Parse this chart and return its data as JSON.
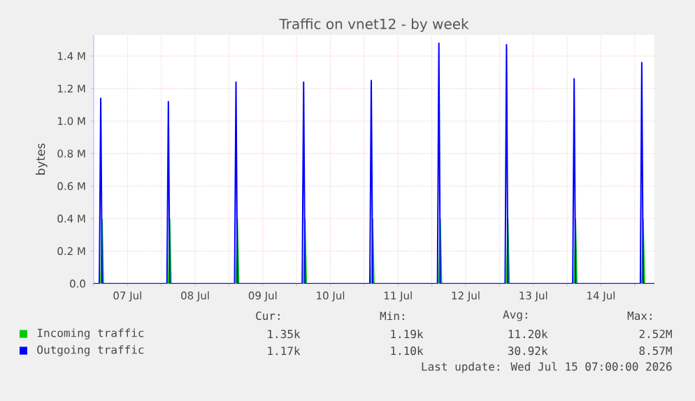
{
  "chart_data": {
    "type": "line",
    "title": "Traffic on vnet12 - by week",
    "ylabel": "bytes",
    "xlim": [
      "2026-07-07T00:00",
      "2026-07-15T07:00"
    ],
    "xticks": [
      {
        "value": "2026-07-07T00:00",
        "label": null
      },
      {
        "value": "2026-07-07T12:00",
        "label": "07 Jul"
      },
      {
        "value": "2026-07-08T00:00",
        "label": null
      },
      {
        "value": "2026-07-08T12:00",
        "label": "08 Jul"
      },
      {
        "value": "2026-07-09T00:00",
        "label": null
      },
      {
        "value": "2026-07-09T12:00",
        "label": "09 Jul"
      },
      {
        "value": "2026-07-10T00:00",
        "label": null
      },
      {
        "value": "2026-07-10T12:00",
        "label": "10 Jul"
      },
      {
        "value": "2026-07-11T00:00",
        "label": null
      },
      {
        "value": "2026-07-11T12:00",
        "label": "11 Jul"
      },
      {
        "value": "2026-07-12T00:00",
        "label": null
      },
      {
        "value": "2026-07-12T12:00",
        "label": "12 Jul"
      },
      {
        "value": "2026-07-13T00:00",
        "label": null
      },
      {
        "value": "2026-07-13T12:00",
        "label": "13 Jul"
      },
      {
        "value": "2026-07-14T00:00",
        "label": null
      },
      {
        "value": "2026-07-14T12:00",
        "label": "14 Jul"
      },
      {
        "value": "2026-07-15T00:00",
        "label": null
      }
    ],
    "ylim": [
      0,
      1530000
    ],
    "yticks": [
      {
        "value": 0,
        "label": "0.0"
      },
      {
        "value": 200000,
        "label": "0.2 M"
      },
      {
        "value": 400000,
        "label": "0.4 M"
      },
      {
        "value": 600000,
        "label": "0.6 M"
      },
      {
        "value": 800000,
        "label": "0.8 M"
      },
      {
        "value": 1000000,
        "label": "1.0 M"
      },
      {
        "value": 1200000,
        "label": "1.2 M"
      },
      {
        "value": 1400000,
        "label": "1.4 M"
      }
    ],
    "grid": true,
    "legend": "bottom left",
    "series": [
      {
        "name": "Incoming traffic",
        "type": "area",
        "color": "#00cc00",
        "x": [
          "2026-07-07T00:00",
          "2026-07-07T02:30",
          "2026-07-07T03:00",
          "2026-07-07T03:30",
          "2026-07-08T02:30",
          "2026-07-08T03:00",
          "2026-07-08T03:30",
          "2026-07-09T02:30",
          "2026-07-09T03:00",
          "2026-07-09T03:30",
          "2026-07-10T02:30",
          "2026-07-10T03:00",
          "2026-07-10T03:30",
          "2026-07-11T02:30",
          "2026-07-11T03:00",
          "2026-07-11T03:30",
          "2026-07-12T02:30",
          "2026-07-12T03:00",
          "2026-07-12T03:30",
          "2026-07-13T02:30",
          "2026-07-13T03:00",
          "2026-07-13T03:30",
          "2026-07-14T02:30",
          "2026-07-14T03:00",
          "2026-07-14T03:30",
          "2026-07-15T02:30",
          "2026-07-15T03:00",
          "2026-07-15T03:30",
          "2026-07-15T07:00"
        ],
        "values": [
          0,
          0,
          400000,
          0,
          0,
          400000,
          0,
          0,
          400000,
          0,
          0,
          400000,
          0,
          0,
          400000,
          0,
          0,
          400000,
          0,
          0,
          400000,
          0,
          0,
          400000,
          0,
          0,
          400000,
          0,
          0
        ]
      },
      {
        "name": "Outgoing traffic",
        "color": "#0000ff",
        "x": [
          "2026-07-07T00:00",
          "2026-07-07T02:00",
          "2026-07-07T02:30",
          "2026-07-07T03:00",
          "2026-07-08T02:00",
          "2026-07-08T02:30",
          "2026-07-08T03:00",
          "2026-07-09T02:00",
          "2026-07-09T02:30",
          "2026-07-09T03:00",
          "2026-07-10T02:00",
          "2026-07-10T02:30",
          "2026-07-10T03:00",
          "2026-07-11T02:00",
          "2026-07-11T02:30",
          "2026-07-11T03:00",
          "2026-07-12T02:00",
          "2026-07-12T02:30",
          "2026-07-12T03:00",
          "2026-07-13T02:00",
          "2026-07-13T02:30",
          "2026-07-13T03:00",
          "2026-07-14T02:00",
          "2026-07-14T02:30",
          "2026-07-14T03:00",
          "2026-07-15T02:00",
          "2026-07-15T02:30",
          "2026-07-15T03:00",
          "2026-07-15T07:00"
        ],
        "values": [
          0,
          0,
          1140000,
          0,
          0,
          1120000,
          0,
          0,
          1240000,
          0,
          0,
          1240000,
          0,
          0,
          1250000,
          0,
          0,
          1480000,
          0,
          0,
          1470000,
          0,
          0,
          1260000,
          0,
          0,
          1360000,
          0,
          0
        ]
      }
    ],
    "annotations": [
      "Cur:",
      "Min:",
      "Avg:",
      "Max:",
      "1.35k",
      "1.19k",
      "11.20k",
      "2.52M",
      "1.17k",
      "1.10k",
      "30.92k",
      "8.57M",
      "Last update: Wed Jul 15 07:00:00 2026"
    ]
  }
}
